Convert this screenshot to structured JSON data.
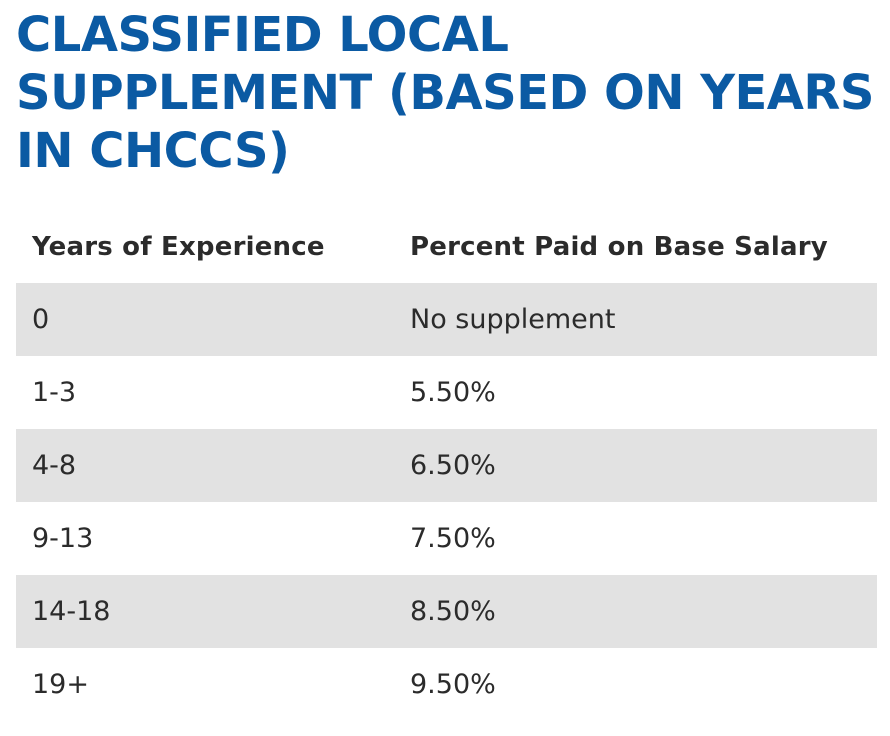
{
  "heading": "CLASSIFIED LOCAL SUPPLEMENT (BASED ON YEARS IN CHCCS)",
  "colors": {
    "heading": "#0b5aa3",
    "stripe": "#e2e2e2",
    "text": "#2b2b2b"
  },
  "table": {
    "headers": {
      "years": "Years of Experience",
      "percent": "Percent Paid on Base Salary"
    },
    "rows": [
      {
        "years": "0",
        "percent": "No supplement"
      },
      {
        "years": "1-3",
        "percent": "5.50%"
      },
      {
        "years": "4-8",
        "percent": "6.50%"
      },
      {
        "years": "9-13",
        "percent": "7.50%"
      },
      {
        "years": "14-18",
        "percent": "8.50%"
      },
      {
        "years": "19+",
        "percent": "9.50%"
      }
    ]
  }
}
